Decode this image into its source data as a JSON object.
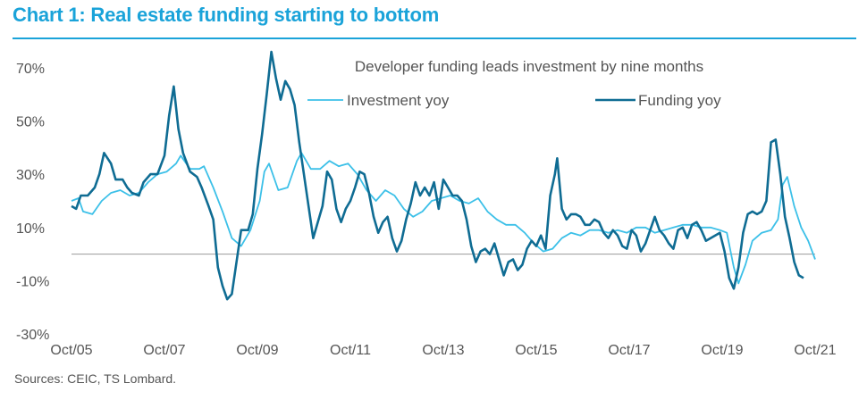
{
  "header": {
    "title": "Chart 1: Real estate funding starting to bottom"
  },
  "footer": {
    "source": "Sources: CEIC, TS Lombard."
  },
  "colors": {
    "accent": "#1aa3d9",
    "investment": "#3cc0e8",
    "funding": "#0f6c93",
    "zero_line": "#999999",
    "text": "#555555"
  },
  "chart_data": {
    "type": "line",
    "title": "Developer funding leads investment by nine months",
    "ylim": [
      -30,
      75
    ],
    "yticks": [
      70,
      50,
      30,
      10,
      -10,
      -30
    ],
    "ytick_labels": [
      "70%",
      "50%",
      "30%",
      "10%",
      "-10%",
      "-30%"
    ],
    "xlim": [
      2005.75,
      2021.75
    ],
    "xticks": [
      2005.75,
      2007.75,
      2009.75,
      2011.75,
      2013.75,
      2015.75,
      2017.75,
      2019.75,
      2021.75
    ],
    "xtick_labels": [
      "Oct/05",
      "Oct/07",
      "Oct/09",
      "Oct/11",
      "Oct/13",
      "Oct/15",
      "Oct/17",
      "Oct/19",
      "Oct/21"
    ],
    "series": [
      {
        "name": "Investment yoy",
        "points": [
          [
            2005.75,
            20
          ],
          [
            2005.9,
            21
          ],
          [
            2006.0,
            16
          ],
          [
            2006.2,
            15
          ],
          [
            2006.4,
            20
          ],
          [
            2006.6,
            23
          ],
          [
            2006.8,
            24
          ],
          [
            2007.0,
            22
          ],
          [
            2007.2,
            23
          ],
          [
            2007.4,
            27
          ],
          [
            2007.6,
            30
          ],
          [
            2007.8,
            31
          ],
          [
            2008.0,
            34
          ],
          [
            2008.1,
            37
          ],
          [
            2008.3,
            32
          ],
          [
            2008.5,
            32
          ],
          [
            2008.6,
            33
          ],
          [
            2008.8,
            25
          ],
          [
            2009.0,
            16
          ],
          [
            2009.1,
            11
          ],
          [
            2009.2,
            6
          ],
          [
            2009.4,
            3
          ],
          [
            2009.6,
            9
          ],
          [
            2009.8,
            20
          ],
          [
            2009.9,
            31
          ],
          [
            2010.0,
            34
          ],
          [
            2010.2,
            24
          ],
          [
            2010.4,
            25
          ],
          [
            2010.6,
            35
          ],
          [
            2010.7,
            38
          ],
          [
            2010.9,
            32
          ],
          [
            2011.1,
            32
          ],
          [
            2011.3,
            35
          ],
          [
            2011.5,
            33
          ],
          [
            2011.7,
            34
          ],
          [
            2011.9,
            30
          ],
          [
            2012.1,
            24
          ],
          [
            2012.3,
            20
          ],
          [
            2012.5,
            24
          ],
          [
            2012.7,
            22
          ],
          [
            2012.9,
            17
          ],
          [
            2013.1,
            14
          ],
          [
            2013.3,
            16
          ],
          [
            2013.5,
            20
          ],
          [
            2013.7,
            21
          ],
          [
            2013.9,
            22
          ],
          [
            2014.1,
            20
          ],
          [
            2014.3,
            19
          ],
          [
            2014.5,
            21
          ],
          [
            2014.7,
            16
          ],
          [
            2014.9,
            13
          ],
          [
            2015.1,
            11
          ],
          [
            2015.3,
            11
          ],
          [
            2015.5,
            8
          ],
          [
            2015.7,
            4
          ],
          [
            2015.9,
            1
          ],
          [
            2016.1,
            2
          ],
          [
            2016.3,
            6
          ],
          [
            2016.5,
            8
          ],
          [
            2016.7,
            7
          ],
          [
            2016.9,
            9
          ],
          [
            2017.1,
            9
          ],
          [
            2017.3,
            8
          ],
          [
            2017.5,
            9
          ],
          [
            2017.7,
            8
          ],
          [
            2017.9,
            10
          ],
          [
            2018.1,
            10
          ],
          [
            2018.3,
            8
          ],
          [
            2018.5,
            9
          ],
          [
            2018.7,
            10
          ],
          [
            2018.9,
            11
          ],
          [
            2019.1,
            11
          ],
          [
            2019.3,
            10
          ],
          [
            2019.5,
            10
          ],
          [
            2019.7,
            9
          ],
          [
            2019.85,
            8
          ],
          [
            2020.0,
            -5
          ],
          [
            2020.1,
            -11
          ],
          [
            2020.25,
            -4
          ],
          [
            2020.4,
            5
          ],
          [
            2020.6,
            8
          ],
          [
            2020.8,
            9
          ],
          [
            2020.95,
            13
          ],
          [
            2021.05,
            26
          ],
          [
            2021.15,
            29
          ],
          [
            2021.3,
            18
          ],
          [
            2021.45,
            10
          ],
          [
            2021.6,
            5
          ],
          [
            2021.75,
            -2
          ]
        ]
      },
      {
        "name": "Funding yoy",
        "points": [
          [
            2005.75,
            18
          ],
          [
            2005.85,
            17
          ],
          [
            2005.95,
            22
          ],
          [
            2006.1,
            22
          ],
          [
            2006.25,
            25
          ],
          [
            2006.35,
            30
          ],
          [
            2006.45,
            38
          ],
          [
            2006.6,
            34
          ],
          [
            2006.7,
            28
          ],
          [
            2006.85,
            28
          ],
          [
            2006.95,
            25
          ],
          [
            2007.05,
            23
          ],
          [
            2007.2,
            22
          ],
          [
            2007.3,
            27
          ],
          [
            2007.45,
            30
          ],
          [
            2007.6,
            30
          ],
          [
            2007.75,
            37
          ],
          [
            2007.85,
            52
          ],
          [
            2007.95,
            63
          ],
          [
            2008.05,
            47
          ],
          [
            2008.15,
            38
          ],
          [
            2008.3,
            31
          ],
          [
            2008.45,
            29
          ],
          [
            2008.55,
            25
          ],
          [
            2008.7,
            18
          ],
          [
            2008.8,
            13
          ],
          [
            2008.9,
            -5
          ],
          [
            2009.0,
            -12
          ],
          [
            2009.1,
            -17
          ],
          [
            2009.2,
            -15
          ],
          [
            2009.3,
            -3
          ],
          [
            2009.4,
            9
          ],
          [
            2009.55,
            9
          ],
          [
            2009.65,
            15
          ],
          [
            2009.75,
            32
          ],
          [
            2009.85,
            45
          ],
          [
            2009.95,
            60
          ],
          [
            2010.05,
            76
          ],
          [
            2010.15,
            66
          ],
          [
            2010.25,
            58
          ],
          [
            2010.35,
            65
          ],
          [
            2010.45,
            62
          ],
          [
            2010.55,
            56
          ],
          [
            2010.65,
            42
          ],
          [
            2010.75,
            30
          ],
          [
            2010.85,
            18
          ],
          [
            2010.95,
            6
          ],
          [
            2011.05,
            12
          ],
          [
            2011.15,
            18
          ],
          [
            2011.25,
            31
          ],
          [
            2011.35,
            28
          ],
          [
            2011.45,
            17
          ],
          [
            2011.55,
            12
          ],
          [
            2011.65,
            17
          ],
          [
            2011.75,
            20
          ],
          [
            2011.85,
            25
          ],
          [
            2011.95,
            31
          ],
          [
            2012.05,
            30
          ],
          [
            2012.15,
            23
          ],
          [
            2012.25,
            14
          ],
          [
            2012.35,
            8
          ],
          [
            2012.45,
            12
          ],
          [
            2012.55,
            14
          ],
          [
            2012.65,
            6
          ],
          [
            2012.75,
            1
          ],
          [
            2012.85,
            5
          ],
          [
            2012.95,
            13
          ],
          [
            2013.05,
            19
          ],
          [
            2013.15,
            27
          ],
          [
            2013.25,
            22
          ],
          [
            2013.35,
            25
          ],
          [
            2013.45,
            22
          ],
          [
            2013.55,
            27
          ],
          [
            2013.65,
            17
          ],
          [
            2013.75,
            28
          ],
          [
            2013.85,
            25
          ],
          [
            2013.95,
            22
          ],
          [
            2014.05,
            22
          ],
          [
            2014.15,
            20
          ],
          [
            2014.25,
            13
          ],
          [
            2014.35,
            3
          ],
          [
            2014.45,
            -3
          ],
          [
            2014.55,
            1
          ],
          [
            2014.65,
            2
          ],
          [
            2014.75,
            0
          ],
          [
            2014.85,
            4
          ],
          [
            2014.95,
            -2
          ],
          [
            2015.05,
            -8
          ],
          [
            2015.15,
            -3
          ],
          [
            2015.25,
            -2
          ],
          [
            2015.35,
            -6
          ],
          [
            2015.45,
            -4
          ],
          [
            2015.55,
            2
          ],
          [
            2015.65,
            5
          ],
          [
            2015.75,
            3
          ],
          [
            2015.85,
            7
          ],
          [
            2015.95,
            2
          ],
          [
            2016.05,
            22
          ],
          [
            2016.15,
            30
          ],
          [
            2016.2,
            36
          ],
          [
            2016.3,
            17
          ],
          [
            2016.4,
            13
          ],
          [
            2016.5,
            15
          ],
          [
            2016.6,
            15
          ],
          [
            2016.7,
            14
          ],
          [
            2016.8,
            11
          ],
          [
            2016.9,
            11
          ],
          [
            2017.0,
            13
          ],
          [
            2017.1,
            12
          ],
          [
            2017.2,
            8
          ],
          [
            2017.3,
            6
          ],
          [
            2017.4,
            9
          ],
          [
            2017.5,
            7
          ],
          [
            2017.6,
            3
          ],
          [
            2017.7,
            2
          ],
          [
            2017.8,
            9
          ],
          [
            2017.9,
            7
          ],
          [
            2018.0,
            1
          ],
          [
            2018.1,
            4
          ],
          [
            2018.2,
            9
          ],
          [
            2018.3,
            14
          ],
          [
            2018.4,
            9
          ],
          [
            2018.5,
            7
          ],
          [
            2018.6,
            4
          ],
          [
            2018.7,
            2
          ],
          [
            2018.8,
            9
          ],
          [
            2018.9,
            10
          ],
          [
            2019.0,
            6
          ],
          [
            2019.1,
            11
          ],
          [
            2019.2,
            12
          ],
          [
            2019.3,
            9
          ],
          [
            2019.4,
            5
          ],
          [
            2019.5,
            6
          ],
          [
            2019.6,
            7
          ],
          [
            2019.7,
            8
          ],
          [
            2019.8,
            1
          ],
          [
            2019.9,
            -9
          ],
          [
            2020.0,
            -13
          ],
          [
            2020.1,
            -5
          ],
          [
            2020.2,
            8
          ],
          [
            2020.3,
            15
          ],
          [
            2020.4,
            16
          ],
          [
            2020.5,
            15
          ],
          [
            2020.6,
            16
          ],
          [
            2020.7,
            20
          ],
          [
            2020.8,
            42
          ],
          [
            2020.9,
            43
          ],
          [
            2021.0,
            30
          ],
          [
            2021.1,
            14
          ],
          [
            2021.2,
            6
          ],
          [
            2021.3,
            -3
          ],
          [
            2021.4,
            -8
          ],
          [
            2021.5,
            -9
          ]
        ]
      }
    ],
    "legend": {
      "placement": "top-center",
      "entries": [
        "Investment yoy",
        "Funding yoy"
      ]
    }
  }
}
